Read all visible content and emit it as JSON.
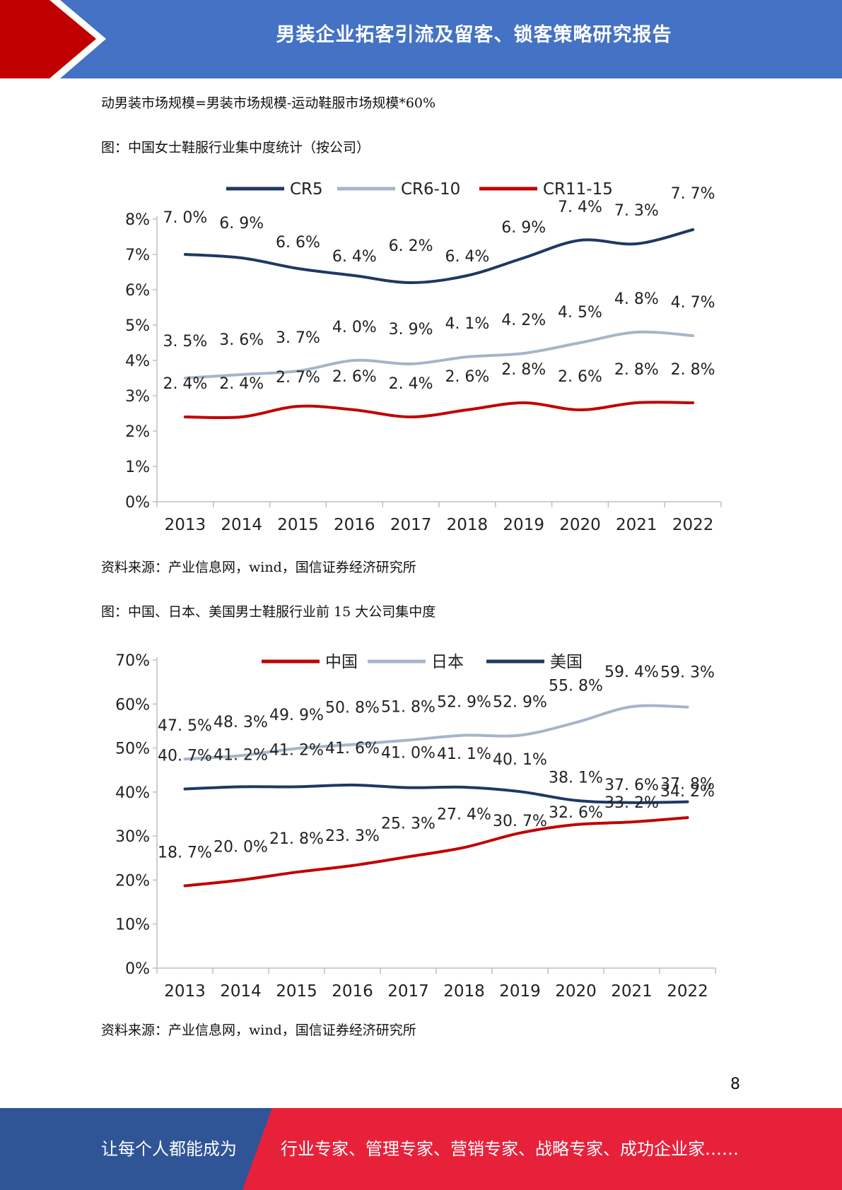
{
  "header": {
    "title": "男装企业拓客引流及留客、锁客策略研究报告",
    "colors": {
      "band": "#4472C4",
      "accent": "#C00000"
    }
  },
  "body": {
    "line1": "动男装市场规模=男装市场规模-运动鞋服市场规模*60%",
    "fig1_caption": "图：中国女士鞋服行业集中度统计（按公司）",
    "fig1_source": "资料来源：产业信息网，wind，国信证券经济研究所",
    "fig2_caption": "图：中国、日本、美国男士鞋服行业前  15  大公司集中度",
    "fig2_source": "资料来源：产业信息网，wind，国信证券经济研究所"
  },
  "chart_data": [
    {
      "type": "line",
      "x": [
        "2013",
        "2014",
        "2015",
        "2016",
        "2017",
        "2018",
        "2019",
        "2020",
        "2021",
        "2022"
      ],
      "y_ticks": [
        "0%",
        "1%",
        "2%",
        "3%",
        "4%",
        "5%",
        "6%",
        "7%",
        "8%"
      ],
      "ylim": [
        0,
        8
      ],
      "legend_position": "top",
      "grid": false,
      "series": [
        {
          "name": "CR5",
          "color": "#1F3864",
          "values": [
            7.0,
            6.9,
            6.6,
            6.4,
            6.2,
            6.4,
            6.9,
            7.4,
            7.3,
            7.7
          ],
          "labels": [
            "7. 0%",
            "6. 9%",
            "6. 6%",
            "6. 4%",
            "6. 2%",
            "6. 4%",
            "6. 9%",
            "7. 4%",
            "7. 3%",
            "7. 7%"
          ]
        },
        {
          "name": "CR6-10",
          "color": "#A6B5C9",
          "values": [
            3.5,
            3.6,
            3.7,
            4.0,
            3.9,
            4.1,
            4.2,
            4.5,
            4.8,
            4.7
          ],
          "labels": [
            "3. 5%",
            "3. 6%",
            "3. 7%",
            "4. 0%",
            "3. 9%",
            "4. 1%",
            "4. 2%",
            "4. 5%",
            "4. 8%",
            "4. 7%"
          ]
        },
        {
          "name": "CR11-15",
          "color": "#C00000",
          "values": [
            2.4,
            2.4,
            2.7,
            2.6,
            2.4,
            2.6,
            2.8,
            2.6,
            2.8,
            2.8
          ],
          "labels": [
            "2. 4%",
            "2. 4%",
            "2. 7%",
            "2. 6%",
            "2. 4%",
            "2. 6%",
            "2. 8%",
            "2. 6%",
            "2. 8%",
            "2. 8%"
          ]
        }
      ]
    },
    {
      "type": "line",
      "x": [
        "2013",
        "2014",
        "2015",
        "2016",
        "2017",
        "2018",
        "2019",
        "2020",
        "2021",
        "2022"
      ],
      "y_ticks": [
        "0%",
        "10%",
        "20%",
        "30%",
        "40%",
        "50%",
        "60%",
        "70%"
      ],
      "ylim": [
        0,
        70
      ],
      "legend_position": "top",
      "grid": false,
      "series": [
        {
          "name": "中国",
          "color": "#C00000",
          "values": [
            18.7,
            20.0,
            21.8,
            23.3,
            25.3,
            27.4,
            30.7,
            32.6,
            33.2,
            34.2
          ],
          "labels": [
            "18. 7%",
            "20. 0%",
            "21. 8%",
            "23. 3%",
            "25. 3%",
            "27. 4%",
            "30. 7%",
            "32. 6%",
            "33. 2%",
            "34. 2%"
          ]
        },
        {
          "name": "日本",
          "color": "#A6B5C9",
          "values": [
            47.5,
            48.3,
            49.9,
            50.8,
            51.8,
            52.9,
            52.9,
            55.8,
            59.4,
            59.3
          ],
          "labels": [
            "47. 5%",
            "48. 3%",
            "49. 9%",
            "50. 8%",
            "51. 8%",
            "52. 9%",
            "52. 9%",
            "55. 8%",
            "59. 4%",
            "59. 3%"
          ]
        },
        {
          "name": "美国",
          "color": "#1F3864",
          "values": [
            40.7,
            41.2,
            41.2,
            41.6,
            41.0,
            41.1,
            40.1,
            38.1,
            37.6,
            37.8
          ],
          "labels": [
            "40. 7%",
            "41. 2%",
            "41. 2%",
            "41. 6%",
            "41. 0%",
            "41. 1%",
            "40. 1%",
            "38. 1%",
            "37. 6%",
            "37. 8%"
          ]
        }
      ]
    }
  ],
  "page": {
    "number": "8"
  },
  "footer": {
    "left_text": "让每个人都能成为",
    "right_text": "行业专家、管理专家、营销专家、战略专家、成功企业家……",
    "colors": {
      "left": "#2F5597",
      "right": "#E8213B"
    }
  }
}
